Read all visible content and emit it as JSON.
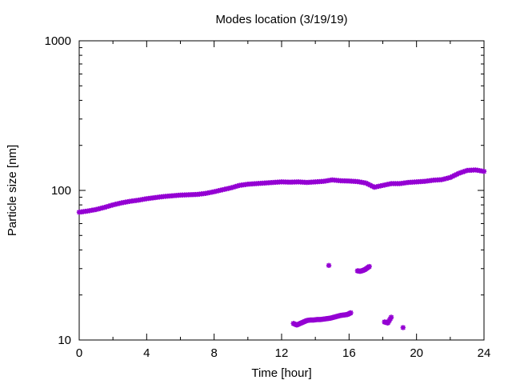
{
  "chart_data": {
    "type": "scatter",
    "title": "Modes location (3/19/19)",
    "xlabel": "Time [hour]",
    "ylabel": "Particle size [nm]",
    "xlim": [
      0,
      24
    ],
    "ylim": [
      10,
      1000
    ],
    "yscale": "log",
    "x_ticks": [
      0,
      4,
      8,
      12,
      16,
      20,
      24
    ],
    "x_tick_labels": [
      "0",
      "4",
      "8",
      "12",
      "16",
      "20",
      "24"
    ],
    "y_ticks": [
      10,
      100,
      1000
    ],
    "y_tick_labels": [
      "10",
      "100",
      "1000"
    ],
    "grid": false,
    "legend": "none",
    "marker_color": "#9400d3",
    "series": [
      {
        "points": [
          [
            0.0,
            71.5
          ],
          [
            0.5,
            72.8
          ],
          [
            1.0,
            74.5
          ],
          [
            1.5,
            77.0
          ],
          [
            2.0,
            80.0
          ],
          [
            2.5,
            82.5
          ],
          [
            3.0,
            84.5
          ],
          [
            3.5,
            86.0
          ],
          [
            4.0,
            88.0
          ],
          [
            4.5,
            89.5
          ],
          [
            5.0,
            91.0
          ],
          [
            5.5,
            92.0
          ],
          [
            6.0,
            93.0
          ],
          [
            6.5,
            93.5
          ],
          [
            7.0,
            94.0
          ],
          [
            7.5,
            95.5
          ],
          [
            8.0,
            98.0
          ],
          [
            8.5,
            101.0
          ],
          [
            9.0,
            104.0
          ],
          [
            9.5,
            108.0
          ],
          [
            10.0,
            110.0
          ],
          [
            10.5,
            111.0
          ],
          [
            11.0,
            112.0
          ],
          [
            11.5,
            113.0
          ],
          [
            12.0,
            114.0
          ],
          [
            12.5,
            113.5
          ],
          [
            13.0,
            114.0
          ],
          [
            13.5,
            113.0
          ],
          [
            14.0,
            114.0
          ],
          [
            14.5,
            115.0
          ],
          [
            15.0,
            117.5
          ],
          [
            15.5,
            116.0
          ],
          [
            16.0,
            115.5
          ],
          [
            16.5,
            114.5
          ],
          [
            17.0,
            112.0
          ],
          [
            17.5,
            105.0
          ],
          [
            18.0,
            108.0
          ],
          [
            18.5,
            111.0
          ],
          [
            19.0,
            111.0
          ],
          [
            19.5,
            113.0
          ],
          [
            20.0,
            114.0
          ],
          [
            20.5,
            115.0
          ],
          [
            21.0,
            117.0
          ],
          [
            21.5,
            118.0
          ],
          [
            22.0,
            122.0
          ],
          [
            22.5,
            130.0
          ],
          [
            23.0,
            136.0
          ],
          [
            23.5,
            137.0
          ],
          [
            24.0,
            134.0
          ]
        ]
      },
      {
        "points": [
          [
            12.7,
            12.9
          ],
          [
            12.9,
            12.6
          ],
          [
            13.1,
            12.9
          ],
          [
            13.3,
            13.2
          ],
          [
            13.5,
            13.5
          ],
          [
            13.7,
            13.6
          ],
          [
            13.9,
            13.6
          ],
          [
            14.1,
            13.7
          ],
          [
            14.3,
            13.7
          ],
          [
            14.5,
            13.8
          ],
          [
            14.7,
            13.9
          ],
          [
            14.9,
            14.0
          ],
          [
            15.1,
            14.2
          ],
          [
            15.3,
            14.4
          ],
          [
            15.5,
            14.6
          ],
          [
            15.7,
            14.7
          ],
          [
            15.9,
            14.8
          ],
          [
            16.1,
            15.2
          ],
          [
            14.8,
            31.5
          ],
          [
            16.5,
            29.0
          ],
          [
            16.65,
            28.8
          ],
          [
            16.8,
            29.1
          ],
          [
            16.95,
            29.6
          ],
          [
            17.2,
            31.0
          ],
          [
            18.1,
            13.2
          ],
          [
            18.3,
            13.0
          ],
          [
            18.5,
            14.2
          ],
          [
            19.2,
            12.1
          ]
        ]
      }
    ]
  }
}
